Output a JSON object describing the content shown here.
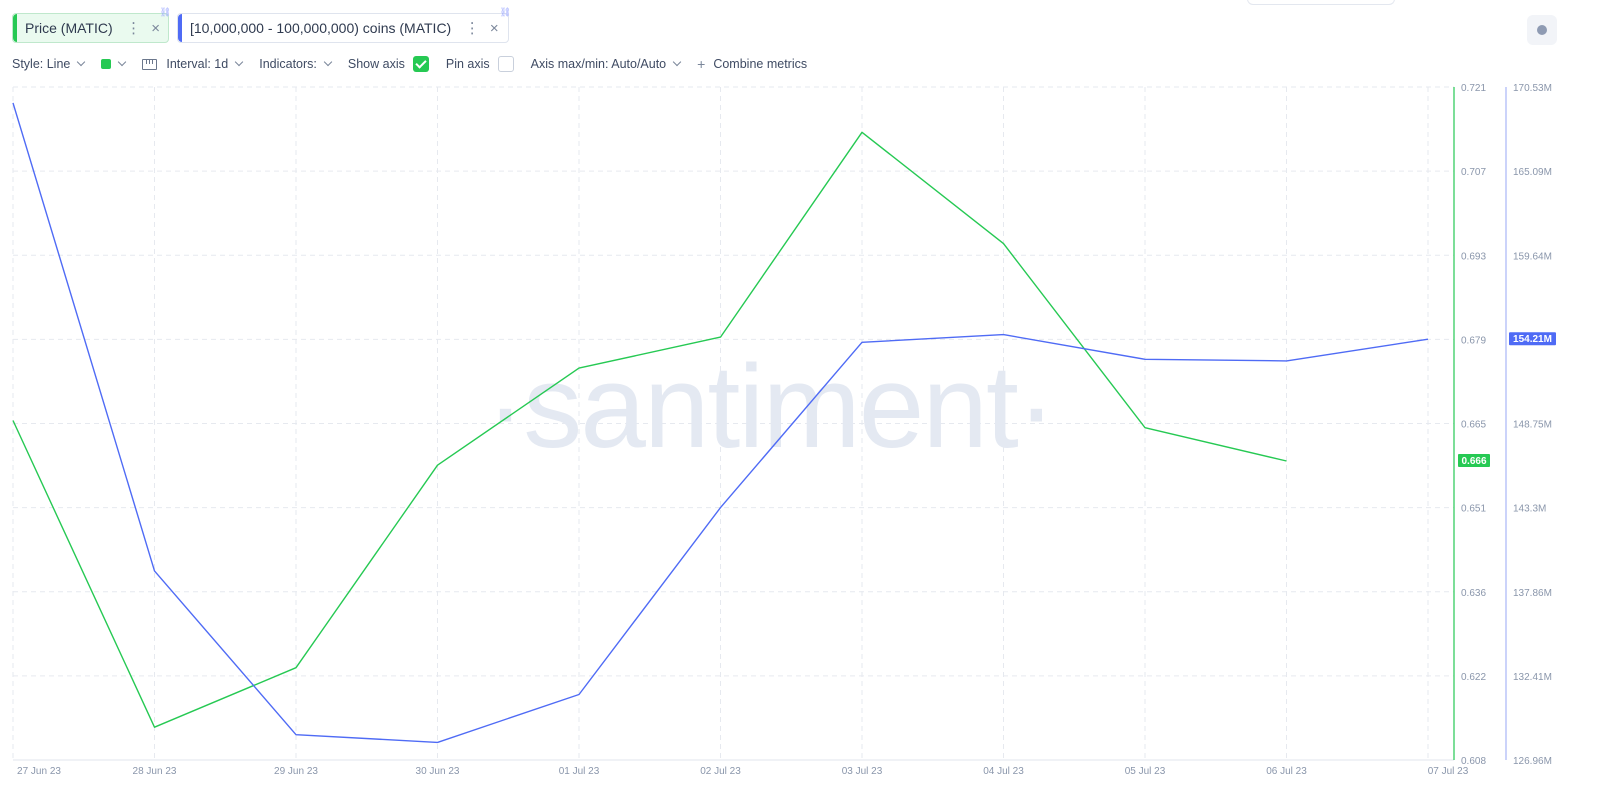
{
  "metrics": [
    {
      "label": "Price (MATIC)",
      "color": "#26c953"
    },
    {
      "label": "[10,000,000 - 100,000,000) coins (MATIC)",
      "color": "#4f6bf5"
    }
  ],
  "toolbar": {
    "style": "Style: Line",
    "interval": "Interval: 1d",
    "indicators": "Indicators:",
    "show_axis": "Show axis",
    "show_axis_checked": true,
    "pin_axis": "Pin axis",
    "pin_axis_checked": false,
    "axis_minmax": "Axis max/min: Auto/Auto",
    "combine": "Combine metrics"
  },
  "icons": {
    "more": "⋮",
    "close": "×",
    "link": "🔗",
    "plus": "+"
  },
  "chart_data": {
    "type": "line",
    "watermark": "·santiment·",
    "x": [
      "27 Jun 23",
      "28 Jun 23",
      "29 Jun 23",
      "30 Jun 23",
      "01 Jul 23",
      "02 Jul 23",
      "03 Jul 23",
      "04 Jul 23",
      "05 Jul 23",
      "06 Jul 23",
      "07 Jul 23"
    ],
    "series": [
      {
        "name": "Price (MATIC)",
        "color": "#26c953",
        "axis": "left-inner",
        "values": [
          0.665,
          0.6135,
          0.6235,
          0.6575,
          0.6738,
          0.679,
          0.7134,
          0.6947,
          0.6638,
          0.6582,
          null
        ]
      },
      {
        "name": "[10,000,000 - 100,000,000) coins (MATIC)",
        "color": "#4f6bf5",
        "axis": "right",
        "values": [
          169.5,
          139.2,
          128.6,
          128.1,
          131.2,
          143.3,
          154.0,
          154.5,
          152.9,
          152.8,
          154.2
        ]
      }
    ],
    "price_axis": {
      "ticks": [
        "0.721",
        "0.707",
        "0.693",
        "0.679",
        "0.665",
        "0.651",
        "0.636",
        "0.622",
        "0.608"
      ],
      "min": 0.608,
      "max": 0.721,
      "current_label": "0.666"
    },
    "coins_axis": {
      "ticks": [
        "170.53M",
        "165.09M",
        "159.64M",
        "154.21M",
        "148.75M",
        "143.3M",
        "137.86M",
        "132.41M",
        "126.96M"
      ],
      "min": 126.96,
      "max": 170.53,
      "current_label": "154.21M"
    },
    "grid": true
  }
}
